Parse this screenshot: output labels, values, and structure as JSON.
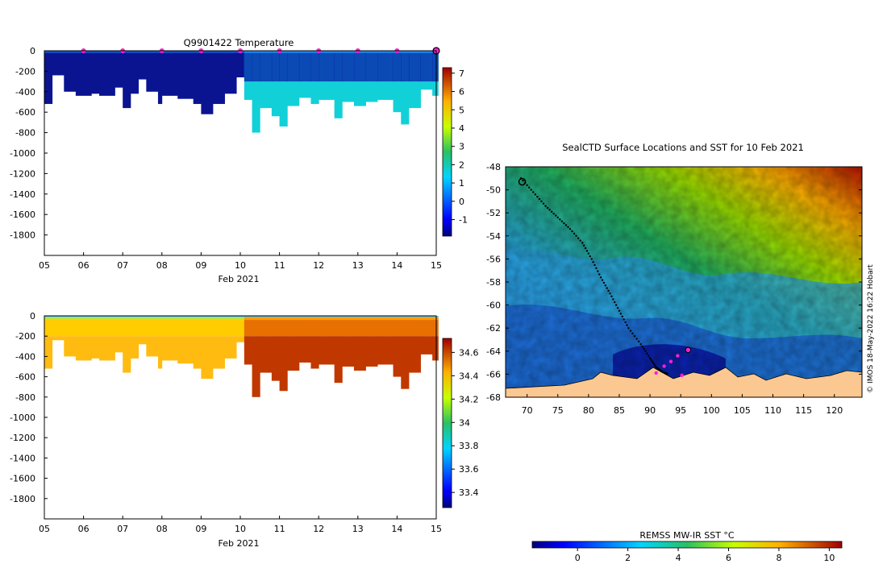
{
  "chart_data": [
    {
      "type": "heatmap",
      "name": "temperature-section",
      "title": "Q9901422  Temperature",
      "xlabel": "Feb 2021",
      "x_ticks": [
        "05",
        "06",
        "07",
        "08",
        "09",
        "10",
        "11",
        "12",
        "13",
        "14",
        "15"
      ],
      "x_range": [
        5,
        15
      ],
      "y_ticks": [
        "0",
        "-200",
        "-400",
        "-600",
        "-800",
        "-1000",
        "-1200",
        "-1400",
        "-1600",
        "-1800"
      ],
      "y_range": [
        -2000,
        0
      ],
      "profile_markers_days": [
        6,
        7,
        8,
        9,
        10,
        11,
        12,
        13,
        14,
        15
      ],
      "last_profile_day": 15,
      "colorbar": {
        "ticks": [
          "-1",
          "0",
          "1",
          "2",
          "3",
          "4",
          "5",
          "6",
          "7"
        ],
        "range": [
          -1.9,
          7.3
        ]
      },
      "segments": [
        {
          "from": 5.0,
          "to": 5.2,
          "depth": 520
        },
        {
          "from": 5.2,
          "to": 5.5,
          "depth": 240
        },
        {
          "from": 5.5,
          "to": 5.8,
          "depth": 400
        },
        {
          "from": 5.8,
          "to": 6.2,
          "depth": 440
        },
        {
          "from": 6.2,
          "to": 6.4,
          "depth": 420
        },
        {
          "from": 6.4,
          "to": 6.8,
          "depth": 440
        },
        {
          "from": 6.8,
          "to": 7.0,
          "depth": 360
        },
        {
          "from": 7.0,
          "to": 7.2,
          "depth": 560
        },
        {
          "from": 7.2,
          "to": 7.4,
          "depth": 420
        },
        {
          "from": 7.4,
          "to": 7.6,
          "depth": 280
        },
        {
          "from": 7.6,
          "to": 7.9,
          "depth": 400
        },
        {
          "from": 7.9,
          "to": 8.0,
          "depth": 520
        },
        {
          "from": 8.0,
          "to": 8.4,
          "depth": 440
        },
        {
          "from": 8.4,
          "to": 8.8,
          "depth": 470
        },
        {
          "from": 8.8,
          "to": 9.0,
          "depth": 520
        },
        {
          "from": 9.0,
          "to": 9.3,
          "depth": 620
        },
        {
          "from": 9.3,
          "to": 9.6,
          "depth": 520
        },
        {
          "from": 9.6,
          "to": 9.9,
          "depth": 420
        },
        {
          "from": 9.9,
          "to": 10.1,
          "depth": 260
        },
        {
          "from": 10.1,
          "to": 10.3,
          "depth": 480
        },
        {
          "from": 10.3,
          "to": 10.5,
          "depth": 800
        },
        {
          "from": 10.5,
          "to": 10.8,
          "depth": 560
        },
        {
          "from": 10.8,
          "to": 11.0,
          "depth": 640
        },
        {
          "from": 11.0,
          "to": 11.2,
          "depth": 740
        },
        {
          "from": 11.2,
          "to": 11.5,
          "depth": 540
        },
        {
          "from": 11.5,
          "to": 11.8,
          "depth": 460
        },
        {
          "from": 11.8,
          "to": 12.0,
          "depth": 520
        },
        {
          "from": 12.0,
          "to": 12.4,
          "depth": 480
        },
        {
          "from": 12.4,
          "to": 12.6,
          "depth": 660
        },
        {
          "from": 12.6,
          "to": 12.9,
          "depth": 500
        },
        {
          "from": 12.9,
          "to": 13.2,
          "depth": 540
        },
        {
          "from": 13.2,
          "to": 13.5,
          "depth": 500
        },
        {
          "from": 13.5,
          "to": 13.9,
          "depth": 480
        },
        {
          "from": 13.9,
          "to": 14.1,
          "depth": 600
        },
        {
          "from": 14.1,
          "to": 14.3,
          "depth": 720
        },
        {
          "from": 14.3,
          "to": 14.6,
          "depth": 560
        },
        {
          "from": 14.6,
          "to": 14.9,
          "depth": 380
        },
        {
          "from": 14.9,
          "to": 15.05,
          "depth": 440
        }
      ]
    },
    {
      "type": "heatmap",
      "name": "salinity-section",
      "title": "",
      "xlabel": "Feb 2021",
      "x_ticks": [
        "05",
        "06",
        "07",
        "08",
        "09",
        "10",
        "11",
        "12",
        "13",
        "14",
        "15"
      ],
      "x_range": [
        5,
        15
      ],
      "y_ticks": [
        "0",
        "-200",
        "-400",
        "-600",
        "-800",
        "-1000",
        "-1200",
        "-1400",
        "-1600",
        "-1800"
      ],
      "y_range": [
        -2000,
        0
      ],
      "colorbar": {
        "ticks": [
          "33.4",
          "33.6",
          "33.8",
          "34",
          "34.2",
          "34.4",
          "34.6"
        ],
        "range": [
          33.27,
          34.72
        ]
      }
    },
    {
      "type": "heatmap",
      "name": "sst-map",
      "title": "SealCTD Surface Locations and SST for 10 Feb 2021",
      "x_ticks": [
        "70",
        "75",
        "80",
        "85",
        "90",
        "95",
        "100",
        "105",
        "110",
        "115",
        "120"
      ],
      "x_range": [
        66.5,
        124.5
      ],
      "y_ticks": [
        "-48",
        "-50",
        "-52",
        "-54",
        "-56",
        "-58",
        "-60",
        "-62",
        "-64",
        "-66",
        "-68"
      ],
      "y_range": [
        -68,
        -48
      ],
      "colorbar_label": "REMSS MW-IR SST °C",
      "colorbar": {
        "ticks": [
          "0",
          "2",
          "4",
          "6",
          "8",
          "10"
        ],
        "range": [
          -1.8,
          10.5
        ]
      },
      "track": [
        [
          69,
          -49
        ],
        [
          71,
          -50.2
        ],
        [
          73,
          -51.4
        ],
        [
          75,
          -52.4
        ],
        [
          77,
          -53.4
        ],
        [
          79,
          -54.6
        ],
        [
          80.5,
          -56
        ],
        [
          82,
          -57.6
        ],
        [
          83.5,
          -59
        ],
        [
          85,
          -60.5
        ],
        [
          86.5,
          -62
        ],
        [
          88.5,
          -63.4
        ],
        [
          90,
          -64.6
        ],
        [
          91,
          -65.4
        ],
        [
          92,
          -65.8
        ],
        [
          93,
          -66
        ]
      ],
      "recent_positions": [
        [
          91,
          -65.9
        ],
        [
          92.3,
          -65.3
        ],
        [
          93.4,
          -64.9
        ],
        [
          94.5,
          -64.4
        ],
        [
          95.2,
          -66.1
        ],
        [
          96.2,
          -63.9
        ]
      ],
      "credit": "© IMOS 18-May-2022 16:22 Hobart"
    }
  ]
}
